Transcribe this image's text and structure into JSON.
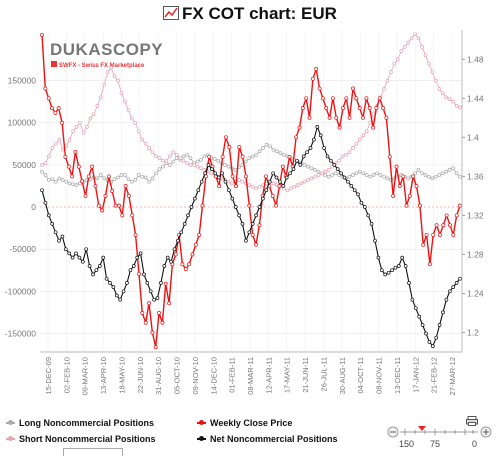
{
  "title": "FX COT chart: EUR",
  "logo": {
    "name": "DUKASCOPY",
    "tagline": "SWFX - Swiss FX Marketplace"
  },
  "legend": {
    "long": "Long Noncommercial Positions",
    "short": "Short Noncommercial Positions",
    "weekly": "Weekly Close Price",
    "net": "Net Noncommercial Positions"
  },
  "slider": {
    "labels": [
      "150",
      "75",
      "0"
    ]
  },
  "colors": {
    "long": "#aaaaaa",
    "short": "#e6a3b3",
    "price": "#ee1111",
    "net": "#111111",
    "zero_line": "#f2a0a0"
  },
  "chart_data": {
    "type": "line",
    "x_tick_labels": [
      "15-DEC-09",
      "02-FEB-10",
      "09-MAR-10",
      "13-APR-10",
      "18-MAY-10",
      "22-JUN-10",
      "31-AUG-10",
      "05-OCT-10",
      "09-NOV-10",
      "14-DEC-10",
      "01-FEB-11",
      "08-MAR-11",
      "12-APR-11",
      "17-MAY-11",
      "21-JUN-11",
      "26-JUL-11",
      "30-AUG-11",
      "04-OCT-11",
      "08-NOV-11",
      "13-DEC-11",
      "17-JAN-12",
      "21-FEB-12",
      "27-MAR-12"
    ],
    "y_left_ticks": [
      "150000",
      "100000",
      "50000",
      "0",
      "-50000",
      "-100000",
      "-150000"
    ],
    "y_right_ticks": [
      "1.48",
      "1.44",
      "1.4",
      "1.36",
      "1.32",
      "1.28",
      "1.24",
      "1.2"
    ],
    "y_left_range": [
      -172000,
      210000
    ],
    "y_right_range": [
      1.18,
      1.51
    ],
    "series": [
      {
        "name": "Long Noncommercial Positions",
        "axis": "left",
        "values": [
          42000,
          38000,
          32000,
          33000,
          30000,
          34000,
          32000,
          30000,
          28000,
          27000,
          26000,
          28000,
          30000,
          32000,
          33000,
          35000,
          34000,
          38000,
          34000,
          32000,
          30000,
          33000,
          35000,
          38000,
          38000,
          33000,
          30000,
          32000,
          38000,
          36000,
          35000,
          30000,
          34000,
          40000,
          45000,
          48000,
          52000,
          50000,
          54000,
          58000,
          56000,
          60000,
          62000,
          58000,
          52000,
          54000,
          56000,
          60000,
          62000,
          58000,
          57000,
          55000,
          52000,
          50000,
          48000,
          46000,
          44000,
          47000,
          50000,
          54000,
          58000,
          60000,
          62000,
          66000,
          70000,
          74000,
          72000,
          68000,
          66000,
          64000,
          62000,
          60000,
          58000,
          56000,
          54000,
          52000,
          50000,
          48000,
          46000,
          44000,
          42000,
          40000,
          38000,
          36000,
          38000,
          40000,
          38000,
          36000,
          34000,
          36000,
          38000,
          40000,
          42000,
          40000,
          38000,
          36000,
          38000,
          40000,
          38000,
          36000,
          34000,
          32000,
          34000,
          36000,
          38000,
          36000,
          34000,
          36000,
          40000,
          44000,
          40000,
          38000,
          36000,
          34000,
          36000,
          38000,
          40000,
          42000,
          44000,
          46000,
          40000,
          36000
        ]
      },
      {
        "name": "Short Noncommercial Positions",
        "axis": "left",
        "values": [
          50000,
          52000,
          60000,
          70000,
          75000,
          80000,
          68000,
          72000,
          80000,
          90000,
          95000,
          100000,
          88000,
          95000,
          105000,
          110000,
          120000,
          130000,
          145000,
          160000,
          165000,
          155000,
          150000,
          135000,
          125000,
          115000,
          105000,
          100000,
          90000,
          80000,
          75000,
          70000,
          65000,
          60000,
          58000,
          55000,
          55000,
          60000,
          65000,
          62000,
          58000,
          55000,
          52000,
          50000,
          50000,
          48000,
          46000,
          44000,
          42000,
          40000,
          38000,
          36000,
          34000,
          32000,
          30000,
          28000,
          30000,
          32000,
          30000,
          28000,
          26000,
          24000,
          22000,
          24000,
          26000,
          28000,
          30000,
          28000,
          26000,
          24000,
          22000,
          20000,
          22000,
          24000,
          26000,
          28000,
          30000,
          32000,
          34000,
          36000,
          38000,
          40000,
          42000,
          44000,
          48000,
          52000,
          55000,
          60000,
          62000,
          65000,
          70000,
          75000,
          80000,
          85000,
          90000,
          100000,
          110000,
          120000,
          130000,
          140000,
          150000,
          160000,
          170000,
          175000,
          185000,
          190000,
          195000,
          200000,
          205000,
          200000,
          190000,
          180000,
          170000,
          160000,
          150000,
          140000,
          135000,
          130000,
          128000,
          125000,
          120000,
          118000
        ]
      },
      {
        "name": "Weekly Close Price",
        "axis": "right",
        "values": [
          1.505,
          1.45,
          1.44,
          1.43,
          1.425,
          1.43,
          1.415,
          1.38,
          1.37,
          1.36,
          1.385,
          1.37,
          1.355,
          1.34,
          1.36,
          1.37,
          1.35,
          1.33,
          1.325,
          1.34,
          1.36,
          1.345,
          1.33,
          1.33,
          1.32,
          1.35,
          1.34,
          1.32,
          1.3,
          1.26,
          1.22,
          1.21,
          1.23,
          1.2,
          1.185,
          1.22,
          1.21,
          1.25,
          1.23,
          1.27,
          1.28,
          1.3,
          1.27,
          1.265,
          1.27,
          1.28,
          1.29,
          1.3,
          1.33,
          1.36,
          1.38,
          1.37,
          1.36,
          1.35,
          1.38,
          1.4,
          1.39,
          1.36,
          1.35,
          1.39,
          1.38,
          1.36,
          1.33,
          1.3,
          1.29,
          1.31,
          1.34,
          1.36,
          1.35,
          1.34,
          1.33,
          1.35,
          1.37,
          1.36,
          1.38,
          1.37,
          1.4,
          1.41,
          1.43,
          1.44,
          1.42,
          1.46,
          1.47,
          1.45,
          1.44,
          1.43,
          1.42,
          1.44,
          1.42,
          1.41,
          1.43,
          1.44,
          1.42,
          1.45,
          1.44,
          1.43,
          1.42,
          1.44,
          1.43,
          1.41,
          1.43,
          1.44,
          1.43,
          1.42,
          1.38,
          1.34,
          1.37,
          1.35,
          1.36,
          1.33,
          1.34,
          1.36,
          1.35,
          1.33,
          1.29,
          1.3,
          1.27,
          1.3,
          1.31,
          1.3,
          1.31,
          1.32,
          1.31,
          1.3,
          1.32,
          1.33
        ]
      },
      {
        "name": "Net Noncommercial Positions",
        "axis": "left",
        "values": [
          20000,
          5000,
          -10000,
          -20000,
          -30000,
          -40000,
          -35000,
          -50000,
          -55000,
          -60000,
          -55000,
          -60000,
          -65000,
          -50000,
          -70000,
          -80000,
          -75000,
          -70000,
          -60000,
          -85000,
          -90000,
          -95000,
          -105000,
          -110000,
          -100000,
          -90000,
          -75000,
          -70000,
          -60000,
          -55000,
          -80000,
          -90000,
          -100000,
          -110000,
          -108000,
          -90000,
          -70000,
          -60000,
          -65000,
          -50000,
          -40000,
          -30000,
          -20000,
          -10000,
          0,
          10000,
          20000,
          30000,
          40000,
          50000,
          45000,
          40000,
          35000,
          40000,
          30000,
          20000,
          10000,
          0,
          -10000,
          -20000,
          -40000,
          -30000,
          -20000,
          -10000,
          0,
          10000,
          20000,
          30000,
          40000,
          35000,
          30000,
          25000,
          35000,
          40000,
          45000,
          55000,
          50000,
          60000,
          65000,
          70000,
          80000,
          95000,
          85000,
          70000,
          60000,
          55000,
          50000,
          45000,
          40000,
          35000,
          30000,
          25000,
          20000,
          15000,
          5000,
          0,
          -10000,
          -20000,
          -40000,
          -60000,
          -75000,
          -80000,
          -78000,
          -75000,
          -72000,
          -70000,
          -60000,
          -70000,
          -90000,
          -110000,
          -120000,
          -130000,
          -140000,
          -150000,
          -160000,
          -165000,
          -155000,
          -140000,
          -125000,
          -110000,
          -100000,
          -95000,
          -90000,
          -85000
        ]
      }
    ]
  }
}
